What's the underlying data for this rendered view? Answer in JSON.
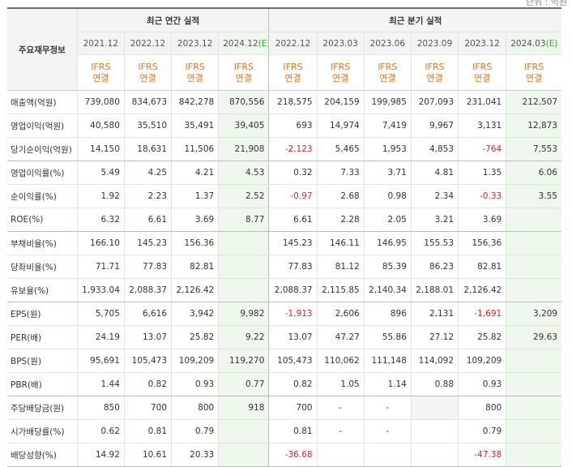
{
  "corner_text": "단위 : 억원",
  "header": {
    "row_label": "주요재무정보",
    "annual_title": "최근 연간 실적",
    "quarter_title": "최근 분기 실적",
    "periods": [
      {
        "label": "2021.12",
        "estimate": false
      },
      {
        "label": "2022.12",
        "estimate": false
      },
      {
        "label": "2023.12",
        "estimate": false
      },
      {
        "label": "2024.12",
        "estimate": true
      },
      {
        "label": "2022.12",
        "estimate": false
      },
      {
        "label": "2023.03",
        "estimate": false
      },
      {
        "label": "2023.06",
        "estimate": false
      },
      {
        "label": "2023.09",
        "estimate": false
      },
      {
        "label": "2023.12",
        "estimate": false
      },
      {
        "label": "2024.03",
        "estimate": true
      }
    ],
    "estimate_mark": "(E)",
    "ifrs_line1": "IFRS",
    "ifrs_line2": "연결"
  },
  "rows": [
    {
      "label": "매출액(억원)",
      "values": [
        "739,080",
        "834,673",
        "842,278",
        "870,556",
        "218,575",
        "204,159",
        "199,985",
        "207,093",
        "231,041",
        "212,507"
      ]
    },
    {
      "label": "영업이익(억원)",
      "values": [
        "40,580",
        "35,510",
        "35,491",
        "39,405",
        "693",
        "14,974",
        "7,419",
        "9,967",
        "3,131",
        "12,873"
      ]
    },
    {
      "label": "당기순이익(억원)",
      "values": [
        "14,150",
        "18,631",
        "11,506",
        "21,908",
        "-2,123",
        "5,465",
        "1,953",
        "4,853",
        "-764",
        "7,553"
      ],
      "group_end": true
    },
    {
      "label": "영업이익률(%)",
      "values": [
        "5.49",
        "4.25",
        "4.21",
        "4.53",
        "0.32",
        "7.33",
        "3.71",
        "4.81",
        "1.35",
        "6.06"
      ]
    },
    {
      "label": "순이익률(%)",
      "values": [
        "1.92",
        "2.23",
        "1.37",
        "2.52",
        "-0.97",
        "2.68",
        "0.98",
        "2.34",
        "-0.33",
        "3.55"
      ]
    },
    {
      "label": "ROE(%)",
      "values": [
        "6.32",
        "6.61",
        "3.69",
        "8.77",
        "6.61",
        "2.28",
        "2.05",
        "3.21",
        "3.69",
        ""
      ],
      "group_end": true
    },
    {
      "label": "부채비율(%)",
      "values": [
        "166.10",
        "145.23",
        "156.36",
        "",
        "145.23",
        "146.11",
        "146.95",
        "155.53",
        "156.36",
        ""
      ]
    },
    {
      "label": "당좌비율(%)",
      "values": [
        "71.71",
        "77.83",
        "82.81",
        "",
        "77.83",
        "81.12",
        "85.39",
        "86.23",
        "82.81",
        ""
      ]
    },
    {
      "label": "유보율(%)",
      "values": [
        "1,933.04",
        "2,088.37",
        "2,126.42",
        "",
        "2,088.37",
        "2,115.85",
        "2,140.34",
        "2,188.01",
        "2,126.42",
        ""
      ],
      "group_end": true
    },
    {
      "label": "EPS(원)",
      "values": [
        "5,705",
        "6,616",
        "3,942",
        "9,982",
        "-1,913",
        "2,606",
        "896",
        "2,131",
        "-1,691",
        "3,209"
      ]
    },
    {
      "label": "PER(배)",
      "values": [
        "24.19",
        "13.07",
        "25.82",
        "9.22",
        "13.07",
        "47.27",
        "55.86",
        "27.12",
        "25.82",
        "29.63"
      ]
    },
    {
      "label": "BPS(원)",
      "values": [
        "95,691",
        "105,473",
        "109,209",
        "119,270",
        "105,473",
        "110,062",
        "111,148",
        "114,092",
        "109,209",
        ""
      ]
    },
    {
      "label": "PBR(배)",
      "values": [
        "1.44",
        "0.82",
        "0.93",
        "0.77",
        "0.82",
        "1.05",
        "1.14",
        "0.88",
        "0.93",
        ""
      ],
      "group_end": true
    },
    {
      "label": "주당배당금(원)",
      "values": [
        "850",
        "700",
        "800",
        "918",
        "700",
        "-",
        "-",
        "",
        "800",
        ""
      ],
      "shaded": [
        7
      ]
    },
    {
      "label": "시가배당률(%)",
      "values": [
        "0.62",
        "0.81",
        "0.79",
        "",
        "0.81",
        "-",
        "-",
        "",
        "0.79",
        ""
      ]
    },
    {
      "label": "배당성향(%)",
      "values": [
        "14.92",
        "10.61",
        "20.33",
        "",
        "-36.68",
        "",
        "",
        "",
        "-47.38",
        ""
      ],
      "group_end": true
    }
  ]
}
